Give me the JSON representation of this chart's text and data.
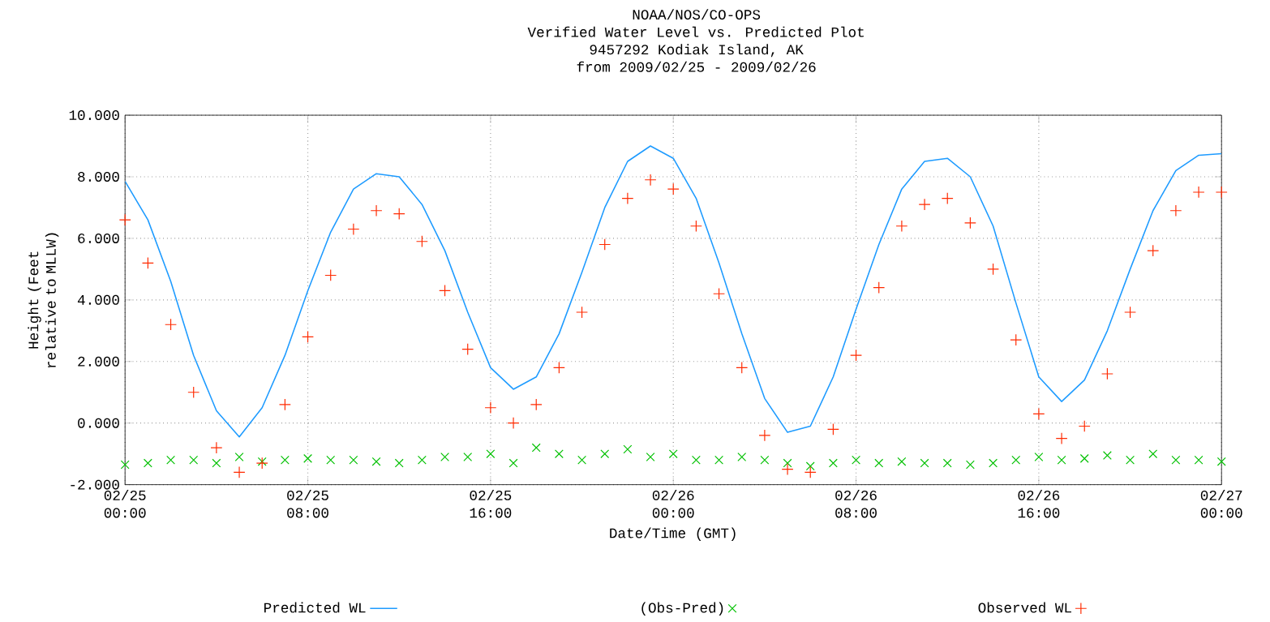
{
  "chart_data": {
    "type": "line",
    "title": "NOAA/NOS/CO-OPS",
    "subtitle": "Verified  Water Level vs. Predicted Plot",
    "annotations": [
      "9457292 Kodiak Island, AK",
      "from 2009/02/25 - 2009/02/26"
    ],
    "xlabel": "Date/Time (GMT)",
    "ylabel": "Height (Feet relative to MLLW)",
    "x": [
      "2009-02-25T00:00",
      "2009-02-25T01:00",
      "2009-02-25T02:00",
      "2009-02-25T03:00",
      "2009-02-25T04:00",
      "2009-02-25T05:00",
      "2009-02-25T06:00",
      "2009-02-25T07:00",
      "2009-02-25T08:00",
      "2009-02-25T09:00",
      "2009-02-25T10:00",
      "2009-02-25T11:00",
      "2009-02-25T12:00",
      "2009-02-25T13:00",
      "2009-02-25T14:00",
      "2009-02-25T15:00",
      "2009-02-25T16:00",
      "2009-02-25T17:00",
      "2009-02-25T18:00",
      "2009-02-25T19:00",
      "2009-02-25T20:00",
      "2009-02-25T21:00",
      "2009-02-25T22:00",
      "2009-02-25T23:00",
      "2009-02-26T00:00",
      "2009-02-26T01:00",
      "2009-02-26T02:00",
      "2009-02-26T03:00",
      "2009-02-26T04:00",
      "2009-02-26T05:00",
      "2009-02-26T06:00",
      "2009-02-26T07:00",
      "2009-02-26T08:00",
      "2009-02-26T09:00",
      "2009-02-26T10:00",
      "2009-02-26T11:00",
      "2009-02-26T12:00",
      "2009-02-26T13:00",
      "2009-02-26T14:00",
      "2009-02-26T15:00",
      "2009-02-26T16:00",
      "2009-02-26T17:00",
      "2009-02-26T18:00",
      "2009-02-26T19:00",
      "2009-02-26T20:00",
      "2009-02-26T21:00",
      "2009-02-26T22:00",
      "2009-02-26T23:00",
      "2009-02-27T00:00"
    ],
    "series": [
      {
        "name": "Predicted WL",
        "color": "#1e9bff",
        "values": [
          7.85,
          6.6,
          4.6,
          2.2,
          0.4,
          -0.45,
          0.5,
          2.2,
          4.3,
          6.2,
          7.6,
          8.1,
          8.0,
          7.1,
          5.6,
          3.6,
          1.8,
          1.1,
          1.5,
          2.9,
          4.9,
          7.0,
          8.5,
          9.0,
          8.6,
          7.3,
          5.2,
          2.9,
          0.8,
          -0.3,
          -0.1,
          1.5,
          3.7,
          5.8,
          7.6,
          8.5,
          8.6,
          8.0,
          6.4,
          3.9,
          1.5,
          0.7,
          1.4,
          3.0,
          5.0,
          6.9,
          8.2,
          8.7,
          8.75
        ]
      },
      {
        "name": "(Obs-Pred)",
        "type": "scatter",
        "marker": "cross",
        "color": "#00c000",
        "values": [
          -1.35,
          -1.3,
          -1.2,
          -1.2,
          -1.3,
          -1.1,
          -1.25,
          -1.2,
          -1.15,
          -1.2,
          -1.2,
          -1.25,
          -1.3,
          -1.2,
          -1.1,
          -1.1,
          -1.0,
          -1.3,
          -0.8,
          -1.0,
          -1.2,
          -1.0,
          -0.85,
          -1.1,
          -1.0,
          -1.2,
          -1.2,
          -1.1,
          -1.2,
          -1.3,
          -1.4,
          -1.3,
          -1.2,
          -1.3,
          -1.25,
          -1.3,
          -1.3,
          -1.35,
          -1.3,
          -1.2,
          -1.1,
          -1.2,
          -1.15,
          -1.05,
          -1.2,
          -1.0,
          -1.2,
          -1.2,
          -1.25
        ]
      },
      {
        "name": "Observed WL",
        "type": "scatter",
        "marker": "plus",
        "color": "#ff2a00",
        "values": [
          6.6,
          5.2,
          3.2,
          1.0,
          -0.8,
          -1.6,
          -1.3,
          0.6,
          2.8,
          4.8,
          6.3,
          6.9,
          6.8,
          5.9,
          4.3,
          2.4,
          0.5,
          0.0,
          0.6,
          1.8,
          3.6,
          5.8,
          7.3,
          7.9,
          7.6,
          6.4,
          4.2,
          1.8,
          -0.4,
          -1.5,
          -1.6,
          -0.2,
          2.2,
          4.4,
          6.4,
          7.1,
          7.3,
          6.5,
          5.0,
          2.7,
          0.3,
          -0.5,
          -0.1,
          1.6,
          3.6,
          5.6,
          6.9,
          7.5,
          7.5
        ]
      }
    ],
    "xlim": [
      "2009-02-25T00:00",
      "2009-02-27T00:00"
    ],
    "xticks": [
      {
        "value": "2009-02-25T00:00",
        "label": "02/25 00:00"
      },
      {
        "value": "2009-02-25T08:00",
        "label": "02/25 08:00"
      },
      {
        "value": "2009-02-25T16:00",
        "label": "02/25 16:00"
      },
      {
        "value": "2009-02-26T00:00",
        "label": "02/26 00:00"
      },
      {
        "value": "2009-02-26T08:00",
        "label": "02/26 08:00"
      },
      {
        "value": "2009-02-26T16:00",
        "label": "02/26 16:00"
      },
      {
        "value": "2009-02-27T00:00",
        "label": "02/27 00:00"
      }
    ],
    "ylim": [
      -2,
      10
    ],
    "yticks": [
      {
        "value": -2,
        "label": "-2.000"
      },
      {
        "value": 0,
        "label": "0.000"
      },
      {
        "value": 2,
        "label": "2.000"
      },
      {
        "value": 4,
        "label": "4.000"
      },
      {
        "value": 6,
        "label": "6.000"
      },
      {
        "value": 8,
        "label": "8.000"
      },
      {
        "value": 10,
        "label": "10.000"
      }
    ],
    "grid": true,
    "legend": "bottom"
  }
}
